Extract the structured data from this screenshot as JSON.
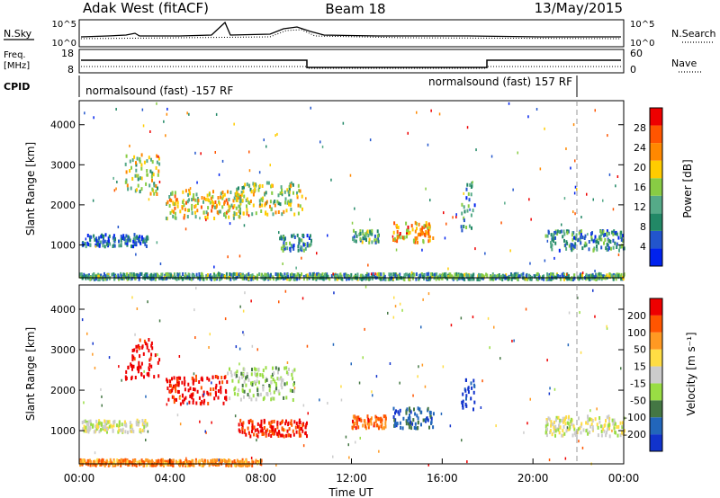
{
  "header": {
    "station": "Adak West (fitACF)",
    "beam": "Beam 18",
    "date": "13/May/2015"
  },
  "summary_panel": {
    "left_label": "N.Sky",
    "right_label": "N.Search",
    "left_ticks": [
      "10^5",
      "10^0"
    ],
    "right_ticks": [
      "10^5",
      "10^0"
    ]
  },
  "freq_panel": {
    "left_label_line1": "Freq.",
    "left_label_line2": "[MHz]",
    "right_label": "Nave",
    "left_ticks": [
      "18",
      "8"
    ],
    "right_ticks": [
      "60",
      "0"
    ]
  },
  "cpid": {
    "label": "CPID",
    "segment1": "normalsound (fast) -157 RF",
    "segment2": "normalsound (fast) 157 RF"
  },
  "colors": {
    "power_scale": [
      "#0022ee",
      "#2255cc",
      "#228866",
      "#55aa88",
      "#88cc44",
      "#ffcc00",
      "#ff8800",
      "#ff5500",
      "#ee0000"
    ],
    "velocity_scale": [
      "#1133cc",
      "#2266bb",
      "#447744",
      "#99dd44",
      "#cccccc",
      "#ffdd44",
      "#ff9922",
      "#ff5500",
      "#ee0000"
    ]
  },
  "chart_data": [
    {
      "type": "heatmap",
      "quantity": "power",
      "ylabel": "Slant Range [km]",
      "xlabel": "Time UT",
      "ylim": [
        180,
        4600
      ],
      "xlim": [
        0,
        24
      ],
      "yticks": [
        "1000",
        "2000",
        "3000",
        "4000"
      ],
      "colorbar_label": "Power [dB]",
      "colorbar_ticks": [
        "4",
        "8",
        "12",
        "16",
        "20",
        "24",
        "28"
      ],
      "regions": [
        {
          "t": [
            0.1,
            3.0
          ],
          "r": [
            1000,
            1300
          ],
          "level": 0.2
        },
        {
          "t": [
            2.0,
            3.5
          ],
          "r": [
            2300,
            3300
          ],
          "level": 0.5
        },
        {
          "t": [
            3.8,
            7.3
          ],
          "r": [
            1700,
            2400
          ],
          "level": 0.6
        },
        {
          "t": [
            6.8,
            9.8
          ],
          "r": [
            1800,
            2600
          ],
          "level": 0.5
        },
        {
          "t": [
            8.8,
            10.2
          ],
          "r": [
            900,
            1300
          ],
          "level": 0.3
        },
        {
          "t": [
            12.0,
            13.2
          ],
          "r": [
            1100,
            1400
          ],
          "level": 0.4
        },
        {
          "t": [
            13.8,
            15.6
          ],
          "r": [
            1100,
            1600
          ],
          "level": 0.7
        },
        {
          "t": [
            16.8,
            17.4
          ],
          "r": [
            1400,
            2600
          ],
          "level": 0.3
        },
        {
          "t": [
            20.5,
            24.0
          ],
          "r": [
            900,
            1400
          ],
          "level": 0.3
        },
        {
          "t": [
            0.0,
            24.0
          ],
          "r": [
            180,
            320
          ],
          "level": 0.35
        }
      ]
    },
    {
      "type": "heatmap",
      "quantity": "velocity",
      "ylabel": "Slant Range [km]",
      "xlabel": "Time UT",
      "ylim": [
        180,
        4600
      ],
      "xlim": [
        0,
        24
      ],
      "xticks": [
        "00:00",
        "04:00",
        "08:00",
        "12:00",
        "16:00",
        "20:00",
        "00:00"
      ],
      "yticks": [
        "1000",
        "2000",
        "3000",
        "4000"
      ],
      "colorbar_label": "Velocity [m s⁻¹]",
      "colorbar_ticks": [
        "200",
        "100",
        "50",
        "15",
        "-15",
        "-50",
        "-100",
        "-200"
      ],
      "regions": [
        {
          "t": [
            0.1,
            3.0
          ],
          "r": [
            1000,
            1300
          ],
          "level": 0.0
        },
        {
          "t": [
            2.0,
            3.5
          ],
          "r": [
            2300,
            3300
          ],
          "level": -1.0
        },
        {
          "t": [
            3.8,
            6.5
          ],
          "r": [
            1700,
            2400
          ],
          "level": -0.9
        },
        {
          "t": [
            6.5,
            9.5
          ],
          "r": [
            1800,
            2600
          ],
          "level": 0.2
        },
        {
          "t": [
            7.0,
            10.0
          ],
          "r": [
            900,
            1300
          ],
          "level": -0.8
        },
        {
          "t": [
            12.0,
            13.5
          ],
          "r": [
            1100,
            1400
          ],
          "level": -0.6
        },
        {
          "t": [
            13.8,
            15.6
          ],
          "r": [
            1100,
            1600
          ],
          "level": 0.6
        },
        {
          "t": [
            16.8,
            17.4
          ],
          "r": [
            1500,
            2300
          ],
          "level": 0.9
        },
        {
          "t": [
            20.5,
            24.0
          ],
          "r": [
            900,
            1400
          ],
          "level": 0.0
        },
        {
          "t": [
            0.0,
            8.0
          ],
          "r": [
            180,
            320
          ],
          "level": -0.5
        }
      ]
    }
  ]
}
